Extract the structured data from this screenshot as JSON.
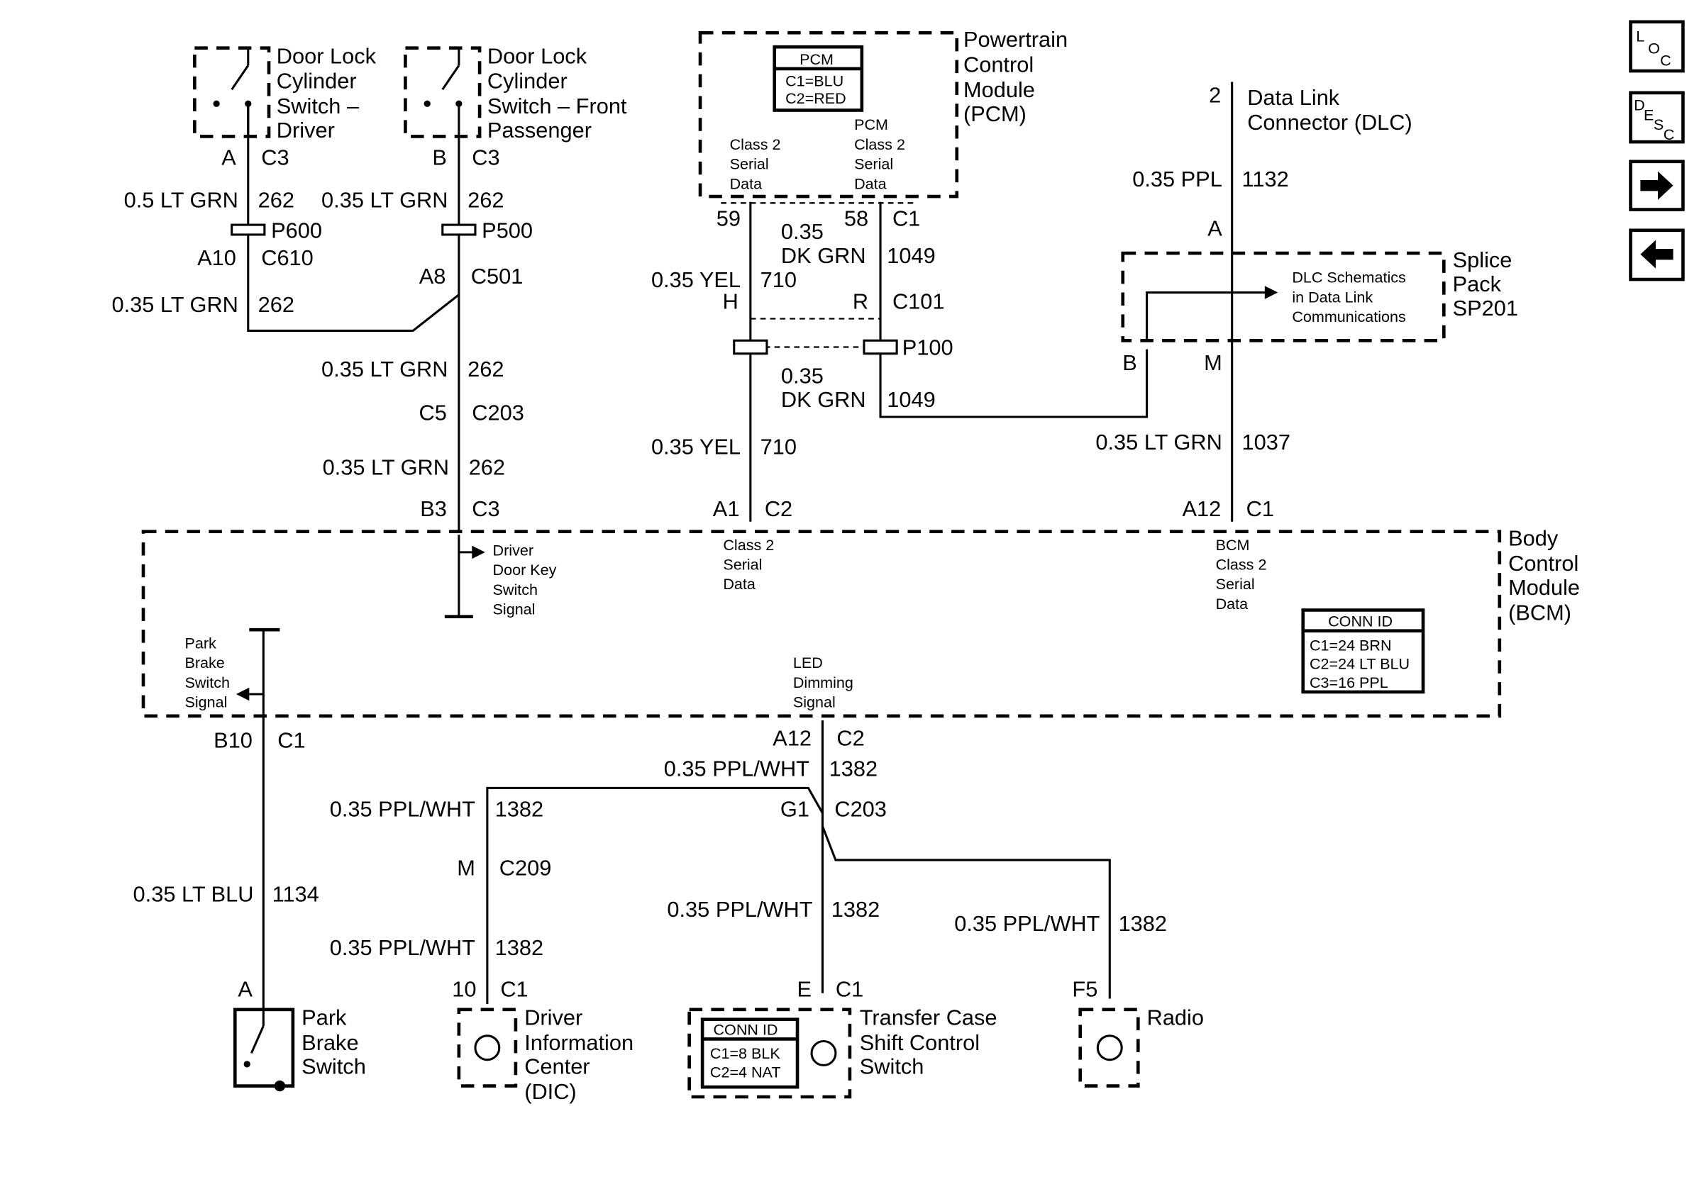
{
  "components": {
    "door_lock_driver": [
      "Door Lock",
      "Cylinder",
      "Switch –",
      "Driver"
    ],
    "door_lock_passenger": [
      "Door Lock",
      "Cylinder",
      "Switch – Front",
      "Passenger"
    ],
    "pcm": [
      "Powertrain",
      "Control",
      "Module",
      "(PCM)"
    ],
    "pcm_conn": {
      "title": "PCM",
      "c1": "C1=BLU",
      "c2": "C2=RED"
    },
    "pcm_sig_left": [
      "Class 2",
      "Serial",
      "Data"
    ],
    "pcm_sig_right": [
      "PCM",
      "Class 2",
      "Serial",
      "Data"
    ],
    "dlc": [
      "Data Link",
      "Connector (DLC)"
    ],
    "splice": [
      "Splice",
      "Pack",
      "SP201"
    ],
    "splice_note": [
      "DLC Schematics",
      "in Data Link",
      "Communications"
    ],
    "bcm": [
      "Body",
      "Control",
      "Module",
      "(BCM)"
    ],
    "bcm_conn": {
      "title": "CONN ID",
      "c1": "C1=24 BRN",
      "c2": "C2=24 LT BLU",
      "c3": "C3=16 PPL"
    },
    "driver_key": [
      "Driver",
      "Door Key",
      "Switch",
      "Signal"
    ],
    "bcm_class2_left": [
      "Class 2",
      "Serial",
      "Data"
    ],
    "bcm_class2_right": [
      "BCM",
      "Class 2",
      "Serial",
      "Data"
    ],
    "park_brake_sig": [
      "Park",
      "Brake",
      "Switch",
      "Signal"
    ],
    "led_dimming": [
      "LED",
      "Dimming",
      "Signal"
    ],
    "park_brake_switch": [
      "Park",
      "Brake",
      "Switch"
    ],
    "dic": [
      "Driver",
      "Information",
      "Center",
      "(DIC)"
    ],
    "transfer_case": [
      "Transfer Case",
      "Shift Control",
      "Switch"
    ],
    "tc_conn": {
      "title": "CONN ID",
      "c1": "C1=8 BLK",
      "c2": "C2=4 NAT"
    },
    "radio": [
      "Radio"
    ]
  },
  "labels": {
    "a": "A",
    "c3": "C3",
    "b": "B",
    "c3b": "C3",
    "w1": "0.5 LT GRN",
    "n1": "262",
    "w2": "0.35 LT GRN",
    "n2": "262",
    "p600": "P600",
    "p500": "P500",
    "a10": "A10",
    "c610": "C610",
    "a8": "A8",
    "c501": "C501",
    "w3": "0.35 LT GRN",
    "n3": "262",
    "w4": "0.35 LT GRN",
    "n4": "262",
    "c5": "C5",
    "c203": "C203",
    "w5": "0.35 LT GRN",
    "n5": "262",
    "b3": "B3",
    "c3c": "C3",
    "p59": "59",
    "p58": "58",
    "c1": "C1",
    "w6a": "0.35",
    "w6b": "DK GRN",
    "n6": "1049",
    "w7": "0.35 YEL",
    "n7": "710",
    "h": "H",
    "r": "R",
    "c101": "C101",
    "p100": "P100",
    "w8a": "0.35",
    "w8b": "DK GRN",
    "n8": "1049",
    "w9": "0.35 YEL",
    "n9": "710",
    "a1": "A1",
    "c2": "C2",
    "dlc2": "2",
    "w10": "0.35 PPL",
    "n10": "1132",
    "dlca": "A",
    "sb": "B",
    "sm": "M",
    "w11": "0.35 LT GRN",
    "n11": "1037",
    "a12": "A12",
    "c1b": "C1",
    "b10": "B10",
    "c1c": "C1",
    "a12b": "A12",
    "c2b": "C2",
    "w12": "0.35 PPL/WHT",
    "n12": "1382",
    "w13": "0.35 PPL/WHT",
    "n13": "1382",
    "g1": "G1",
    "c203b": "C203",
    "m": "M",
    "c209": "C209",
    "w14": "0.35 LT BLU",
    "n14": "1134",
    "w15": "0.35 PPL/WHT",
    "n15": "1382",
    "w16": "0.35 PPL/WHT",
    "n16": "1382",
    "w17": "0.35 PPL/WHT",
    "n17": "1382",
    "w18": "0.35 PPL/WHT",
    "n18": "1382",
    "pa": "A",
    "p10": "10",
    "c1d": "C1",
    "pe": "E",
    "c1e": "C1",
    "f5": "F5"
  },
  "nav": {
    "loc": [
      "L",
      "O",
      "C"
    ],
    "desc": [
      "D",
      "E",
      "S",
      "C"
    ],
    "next": "next-arrow",
    "prev": "prev-arrow"
  }
}
